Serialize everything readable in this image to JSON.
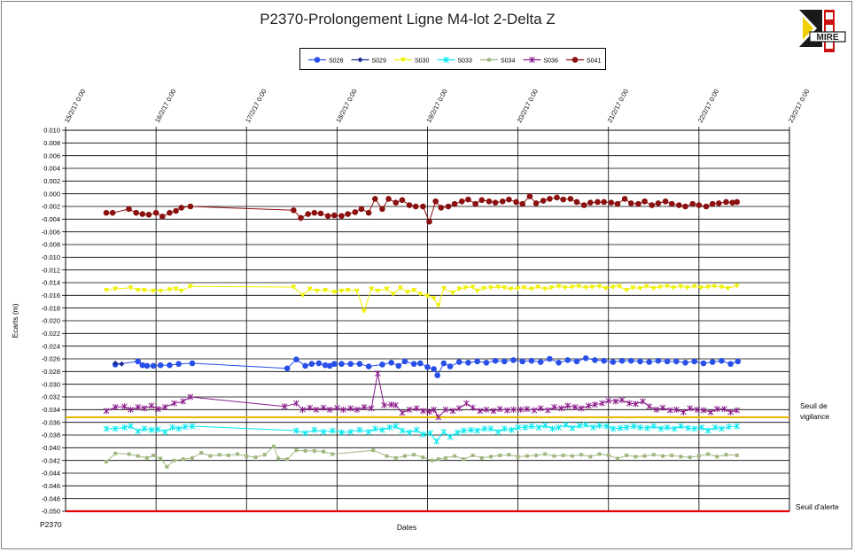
{
  "chart_data": {
    "type": "line",
    "title": "P2370-Prolongement Ligne M4-lot 2-Delta Z",
    "xlabel": "Dates",
    "ylabel": "Ecarts (m)",
    "footer_label": "P2370",
    "logo_text": "MIRE",
    "ylim": [
      -0.05,
      0.01
    ],
    "yticks": [
      "0.010",
      "0.008",
      "0.006",
      "0.004",
      "0.002",
      "0.000",
      "-0.002",
      "-0.004",
      "-0.006",
      "-0.008",
      "-0.010",
      "-0.012",
      "-0.014",
      "-0.016",
      "-0.018",
      "-0.020",
      "-0.022",
      "-0.024",
      "-0.026",
      "-0.028",
      "-0.030",
      "-0.032",
      "-0.034",
      "-0.036",
      "-0.038",
      "-0.040",
      "-0.042",
      "-0.044",
      "-0.046",
      "-0.048",
      "-0.050"
    ],
    "xlim": [
      0,
      8
    ],
    "xticks": [
      "15/2/17 0:00",
      "16/2/17 0:00",
      "17/2/17 0:00",
      "18/2/17 0:00",
      "19/2/17 0:00",
      "20/2/17 0:00",
      "21/2/17 0:00",
      "22/2/17 0:00",
      "23/2/17 0:00"
    ],
    "thresholds": [
      {
        "name": "Seuil de vigilance",
        "label": "Seuil de",
        "label2": "vigilance",
        "value": -0.0352,
        "color": "#E8B800"
      },
      {
        "name": "Seuil d'alerte",
        "label": "Seuil d'alerte",
        "value": -0.05,
        "color": "#E00000"
      }
    ],
    "series": [
      {
        "name": "S028",
        "color": "#2850E8",
        "marker": "circle",
        "x": [
          0.55,
          0.8,
          0.85,
          0.9,
          0.97,
          1.05,
          1.15,
          1.25,
          1.4,
          2.45,
          2.55,
          2.65,
          2.72,
          2.8,
          2.87,
          2.92,
          2.97,
          3.05,
          3.15,
          3.25,
          3.35,
          3.5,
          3.6,
          3.68,
          3.75,
          3.85,
          3.92,
          4.0,
          4.07,
          4.11,
          4.18,
          4.25,
          4.35,
          4.45,
          4.55,
          4.65,
          4.75,
          4.85,
          4.95,
          5.05,
          5.15,
          5.25,
          5.35,
          5.45,
          5.55,
          5.65,
          5.75,
          5.85,
          5.95,
          6.05,
          6.15,
          6.25,
          6.35,
          6.45,
          6.55,
          6.65,
          6.75,
          6.85,
          6.95,
          7.05,
          7.15,
          7.25,
          7.35,
          7.43
        ],
        "y": [
          -0.0269,
          -0.0264,
          -0.027,
          -0.0271,
          -0.0271,
          -0.027,
          -0.027,
          -0.0268,
          -0.0267,
          -0.0275,
          -0.0261,
          -0.0271,
          -0.0268,
          -0.0267,
          -0.027,
          -0.0271,
          -0.0268,
          -0.0268,
          -0.0268,
          -0.0268,
          -0.0272,
          -0.0269,
          -0.0266,
          -0.0271,
          -0.0264,
          -0.0268,
          -0.0267,
          -0.0273,
          -0.0276,
          -0.0286,
          -0.0267,
          -0.0272,
          -0.0265,
          -0.0266,
          -0.0264,
          -0.0266,
          -0.0263,
          -0.0264,
          -0.0262,
          -0.0264,
          -0.0263,
          -0.0265,
          -0.026,
          -0.0266,
          -0.0262,
          -0.0264,
          -0.0259,
          -0.0262,
          -0.0263,
          -0.0265,
          -0.0263,
          -0.0263,
          -0.0264,
          -0.0265,
          -0.0263,
          -0.0264,
          -0.0264,
          -0.0266,
          -0.0264,
          -0.0267,
          -0.0265,
          -0.0263,
          -0.0268,
          -0.0264
        ]
      },
      {
        "name": "S029",
        "color": "#1A2A90",
        "marker": "diamond",
        "x": [
          0.55,
          0.62
        ],
        "y": [
          -0.0267,
          -0.0268
        ]
      },
      {
        "name": "S030",
        "color": "#F0F000",
        "marker": "triangle",
        "x": [
          0.45,
          0.55,
          0.72,
          0.8,
          0.87,
          0.97,
          1.05,
          1.15,
          1.22,
          1.28,
          1.38,
          2.52,
          2.62,
          2.7,
          2.78,
          2.87,
          2.97,
          3.05,
          3.12,
          3.22,
          3.3,
          3.38,
          3.45,
          3.55,
          3.62,
          3.7,
          3.78,
          3.85,
          3.92,
          4.0,
          4.07,
          4.12,
          4.18,
          4.28,
          4.35,
          4.42,
          4.5,
          4.55,
          4.62,
          4.7,
          4.78,
          4.85,
          4.92,
          5.0,
          5.07,
          5.15,
          5.22,
          5.3,
          5.37,
          5.45,
          5.52,
          5.6,
          5.67,
          5.75,
          5.82,
          5.9,
          5.97,
          6.05,
          6.12,
          6.2,
          6.27,
          6.35,
          6.42,
          6.5,
          6.57,
          6.65,
          6.72,
          6.8,
          6.87,
          6.95,
          7.02,
          7.1,
          7.17,
          7.25,
          7.32,
          7.42
        ],
        "y": [
          -0.0152,
          -0.015,
          -0.0148,
          -0.0152,
          -0.0152,
          -0.0153,
          -0.0153,
          -0.0151,
          -0.015,
          -0.0153,
          -0.0146,
          -0.0147,
          -0.016,
          -0.015,
          -0.0153,
          -0.0152,
          -0.0155,
          -0.0153,
          -0.0152,
          -0.0153,
          -0.0185,
          -0.015,
          -0.0153,
          -0.015,
          -0.0158,
          -0.0148,
          -0.0155,
          -0.0152,
          -0.0158,
          -0.0161,
          -0.0165,
          -0.0176,
          -0.0149,
          -0.0156,
          -0.015,
          -0.0148,
          -0.0147,
          -0.0153,
          -0.0149,
          -0.0148,
          -0.0147,
          -0.0148,
          -0.015,
          -0.0149,
          -0.0148,
          -0.015,
          -0.0147,
          -0.015,
          -0.0148,
          -0.0146,
          -0.0148,
          -0.0147,
          -0.0146,
          -0.0148,
          -0.0147,
          -0.0146,
          -0.0149,
          -0.0147,
          -0.0146,
          -0.0152,
          -0.0148,
          -0.0149,
          -0.0146,
          -0.0149,
          -0.0147,
          -0.0146,
          -0.0148,
          -0.0146,
          -0.0148,
          -0.0146,
          -0.0148,
          -0.0147,
          -0.0146,
          -0.0147,
          -0.0149,
          -0.0145
        ]
      },
      {
        "name": "S033",
        "color": "#00E8F0",
        "marker": "star",
        "x": [
          0.45,
          0.55,
          0.65,
          0.72,
          0.8,
          0.87,
          0.95,
          1.02,
          1.1,
          1.18,
          1.25,
          1.32,
          1.4,
          2.55,
          2.65,
          2.75,
          2.85,
          2.95,
          3.05,
          3.15,
          3.25,
          3.35,
          3.42,
          3.5,
          3.58,
          3.65,
          3.72,
          3.8,
          3.88,
          3.95,
          4.03,
          4.1,
          4.18,
          4.25,
          4.33,
          4.4,
          4.48,
          4.55,
          4.63,
          4.7,
          4.78,
          4.85,
          4.93,
          5.0,
          5.08,
          5.15,
          5.23,
          5.3,
          5.38,
          5.45,
          5.53,
          5.6,
          5.68,
          5.75,
          5.83,
          5.9,
          5.98,
          6.05,
          6.13,
          6.2,
          6.28,
          6.35,
          6.43,
          6.5,
          6.58,
          6.65,
          6.73,
          6.8,
          6.88,
          6.95,
          7.03,
          7.1,
          7.18,
          7.25,
          7.33,
          7.42
        ],
        "y": [
          -0.037,
          -0.037,
          -0.0368,
          -0.0366,
          -0.0374,
          -0.037,
          -0.0372,
          -0.0371,
          -0.0375,
          -0.0368,
          -0.037,
          -0.0367,
          -0.0366,
          -0.0373,
          -0.0377,
          -0.0372,
          -0.0375,
          -0.0373,
          -0.0376,
          -0.0375,
          -0.0372,
          -0.0375,
          -0.037,
          -0.0372,
          -0.0368,
          -0.0366,
          -0.0373,
          -0.0376,
          -0.0372,
          -0.0379,
          -0.0377,
          -0.039,
          -0.0375,
          -0.0383,
          -0.0376,
          -0.0373,
          -0.0372,
          -0.0373,
          -0.037,
          -0.037,
          -0.0375,
          -0.037,
          -0.0372,
          -0.0368,
          -0.0368,
          -0.0366,
          -0.0368,
          -0.0365,
          -0.037,
          -0.0368,
          -0.0364,
          -0.0369,
          -0.0365,
          -0.0364,
          -0.0368,
          -0.0365,
          -0.0366,
          -0.037,
          -0.0369,
          -0.0368,
          -0.0366,
          -0.0368,
          -0.0369,
          -0.0366,
          -0.037,
          -0.0368,
          -0.037,
          -0.0366,
          -0.0369,
          -0.037,
          -0.0368,
          -0.0373,
          -0.0368,
          -0.037,
          -0.0367,
          -0.0366
        ]
      },
      {
        "name": "S034",
        "color": "#A0B880",
        "marker": "square",
        "x": [
          0.45,
          0.55,
          0.7,
          0.8,
          0.9,
          0.97,
          1.05,
          1.12,
          1.2,
          1.3,
          1.4,
          1.5,
          1.6,
          1.7,
          1.8,
          1.9,
          2.0,
          2.1,
          2.2,
          2.3,
          2.35,
          2.45,
          2.55,
          2.65,
          2.75,
          2.85,
          2.95,
          3.4,
          3.55,
          3.65,
          3.75,
          3.85,
          3.95,
          4.05,
          4.12,
          4.2,
          4.3,
          4.4,
          4.5,
          4.6,
          4.7,
          4.8,
          4.9,
          5.0,
          5.1,
          5.2,
          5.3,
          5.4,
          5.5,
          5.6,
          5.7,
          5.8,
          5.9,
          6.0,
          6.1,
          6.2,
          6.3,
          6.4,
          6.5,
          6.6,
          6.7,
          6.8,
          6.9,
          7.0,
          7.1,
          7.2,
          7.3,
          7.42
        ],
        "y": [
          -0.0422,
          -0.0409,
          -0.041,
          -0.0413,
          -0.0416,
          -0.0412,
          -0.0417,
          -0.043,
          -0.042,
          -0.0418,
          -0.0416,
          -0.0408,
          -0.0413,
          -0.0411,
          -0.0412,
          -0.041,
          -0.0413,
          -0.0415,
          -0.0411,
          -0.0398,
          -0.0417,
          -0.0418,
          -0.0404,
          -0.0405,
          -0.0405,
          -0.0406,
          -0.041,
          -0.0404,
          -0.0413,
          -0.0416,
          -0.0413,
          -0.0411,
          -0.0415,
          -0.042,
          -0.0418,
          -0.0416,
          -0.0413,
          -0.0418,
          -0.0412,
          -0.0416,
          -0.0414,
          -0.0412,
          -0.0411,
          -0.0414,
          -0.0413,
          -0.0412,
          -0.041,
          -0.0413,
          -0.0412,
          -0.0413,
          -0.0411,
          -0.0414,
          -0.041,
          -0.0412,
          -0.0417,
          -0.0412,
          -0.0414,
          -0.0413,
          -0.0411,
          -0.0413,
          -0.0412,
          -0.0414,
          -0.0415,
          -0.0413,
          -0.041,
          -0.0414,
          -0.0411,
          -0.0412
        ]
      },
      {
        "name": "S036",
        "color": "#8B1A8B",
        "marker": "star",
        "x": [
          0.45,
          0.55,
          0.65,
          0.72,
          0.8,
          0.87,
          0.95,
          1.02,
          1.1,
          1.2,
          1.3,
          1.38,
          2.42,
          2.55,
          2.62,
          2.7,
          2.77,
          2.85,
          2.92,
          3.0,
          3.07,
          3.15,
          3.22,
          3.3,
          3.38,
          3.45,
          3.52,
          3.6,
          3.65,
          3.72,
          3.8,
          3.88,
          3.95,
          4.02,
          4.07,
          4.12,
          4.2,
          4.28,
          4.35,
          4.43,
          4.5,
          4.58,
          4.65,
          4.73,
          4.8,
          4.88,
          4.95,
          5.03,
          5.1,
          5.18,
          5.25,
          5.33,
          5.4,
          5.48,
          5.55,
          5.63,
          5.7,
          5.78,
          5.85,
          5.93,
          6.0,
          6.08,
          6.15,
          6.23,
          6.3,
          6.38,
          6.45,
          6.53,
          6.6,
          6.68,
          6.75,
          6.83,
          6.9,
          6.98,
          7.05,
          7.13,
          7.2,
          7.28,
          7.35,
          7.42
        ],
        "y": [
          -0.0342,
          -0.0336,
          -0.0335,
          -0.034,
          -0.0336,
          -0.0338,
          -0.0334,
          -0.0339,
          -0.0336,
          -0.033,
          -0.0327,
          -0.032,
          -0.0335,
          -0.033,
          -0.034,
          -0.0337,
          -0.034,
          -0.0337,
          -0.034,
          -0.0337,
          -0.034,
          -0.0338,
          -0.034,
          -0.0336,
          -0.0338,
          -0.0283,
          -0.0333,
          -0.0332,
          -0.0333,
          -0.0345,
          -0.034,
          -0.0338,
          -0.0342,
          -0.0343,
          -0.034,
          -0.0352,
          -0.034,
          -0.0342,
          -0.0338,
          -0.033,
          -0.0337,
          -0.0342,
          -0.034,
          -0.0342,
          -0.0339,
          -0.0341,
          -0.034,
          -0.034,
          -0.0339,
          -0.0341,
          -0.0338,
          -0.0341,
          -0.0336,
          -0.0338,
          -0.0334,
          -0.0336,
          -0.0338,
          -0.0334,
          -0.0332,
          -0.033,
          -0.0326,
          -0.0327,
          -0.0325,
          -0.033,
          -0.0331,
          -0.0327,
          -0.0335,
          -0.034,
          -0.0337,
          -0.0341,
          -0.034,
          -0.0344,
          -0.0338,
          -0.034,
          -0.0341,
          -0.0344,
          -0.0339,
          -0.0339,
          -0.0344,
          -0.0341
        ]
      },
      {
        "name": "S041",
        "color": "#8B1010",
        "marker": "circle",
        "x": [
          0.45,
          0.52,
          0.7,
          0.78,
          0.85,
          0.92,
          1.0,
          1.07,
          1.15,
          1.22,
          1.28,
          1.38,
          2.52,
          2.6,
          2.68,
          2.75,
          2.82,
          2.9,
          2.97,
          3.05,
          3.12,
          3.2,
          3.27,
          3.35,
          3.42,
          3.5,
          3.57,
          3.65,
          3.72,
          3.8,
          3.87,
          3.95,
          4.02,
          4.09,
          4.15,
          4.23,
          4.3,
          4.38,
          4.45,
          4.53,
          4.6,
          4.68,
          4.75,
          4.83,
          4.9,
          4.98,
          5.05,
          5.13,
          5.2,
          5.28,
          5.35,
          5.43,
          5.5,
          5.58,
          5.65,
          5.73,
          5.8,
          5.88,
          5.95,
          6.03,
          6.1,
          6.18,
          6.25,
          6.33,
          6.4,
          6.48,
          6.55,
          6.63,
          6.7,
          6.78,
          6.85,
          6.93,
          7.0,
          7.08,
          7.15,
          7.22,
          7.3,
          7.37,
          7.42
        ],
        "y": [
          -0.003,
          -0.003,
          -0.0024,
          -0.003,
          -0.0032,
          -0.0033,
          -0.003,
          -0.0036,
          -0.003,
          -0.0027,
          -0.0022,
          -0.002,
          -0.0026,
          -0.0038,
          -0.0032,
          -0.003,
          -0.0031,
          -0.0035,
          -0.0034,
          -0.0035,
          -0.0032,
          -0.0029,
          -0.0024,
          -0.003,
          -0.0008,
          -0.0024,
          -0.0008,
          -0.0014,
          -0.001,
          -0.0018,
          -0.002,
          -0.002,
          -0.0044,
          -0.0012,
          -0.0022,
          -0.002,
          -0.0016,
          -0.0012,
          -0.0009,
          -0.0016,
          -0.001,
          -0.0012,
          -0.0014,
          -0.0012,
          -0.0009,
          -0.0013,
          -0.0016,
          -0.0004,
          -0.0015,
          -0.0011,
          -0.0008,
          -0.0006,
          -0.0009,
          -0.0008,
          -0.0013,
          -0.0018,
          -0.0014,
          -0.0013,
          -0.0013,
          -0.0014,
          -0.0016,
          -0.0008,
          -0.0015,
          -0.0016,
          -0.0012,
          -0.0018,
          -0.0015,
          -0.0012,
          -0.0016,
          -0.0018,
          -0.002,
          -0.0016,
          -0.0018,
          -0.002,
          -0.0016,
          -0.0015,
          -0.0013,
          -0.0014,
          -0.0013
        ]
      }
    ]
  }
}
